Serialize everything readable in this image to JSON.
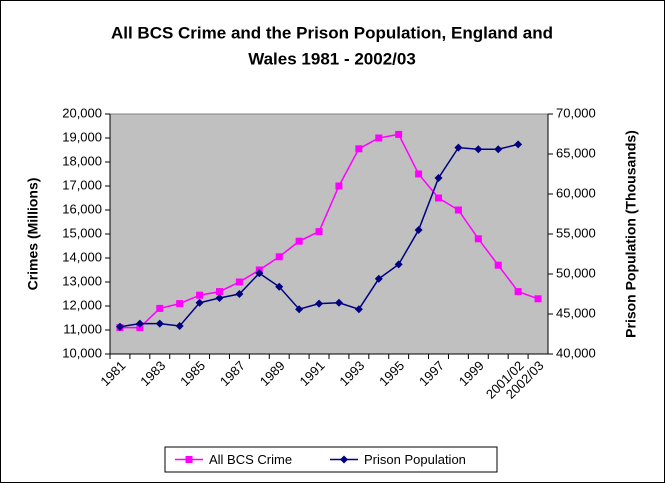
{
  "chart_data": {
    "type": "line",
    "title": [
      "All BCS Crime and the Prison Population, England and",
      "Wales 1981 - 2002/03"
    ],
    "y_label": "Crimes (Millions)",
    "y2_label": "Prison Population (Thousands)",
    "categories": [
      "1981",
      null,
      "1983",
      null,
      "1985",
      null,
      "1987",
      null,
      "1989",
      null,
      "1991",
      null,
      "1993",
      null,
      "1995",
      null,
      "1997",
      null,
      "1999",
      null,
      "2001/02",
      "2002/03"
    ],
    "series": [
      {
        "name": "All BCS Crime",
        "color": "#ff00ff",
        "marker": "square",
        "values": [
          11100,
          11100,
          11900,
          12100,
          12450,
          12600,
          13000,
          13500,
          14050,
          14700,
          15100,
          17000,
          18550,
          19000,
          19150,
          17500,
          16500,
          16000,
          14800,
          13700,
          12600,
          12300
        ]
      },
      {
        "name": "Prison Population",
        "color": "#000080",
        "marker": "diamond",
        "axis": "y2",
        "values": [
          43400,
          43800,
          43800,
          43500,
          46400,
          47000,
          47500,
          50100,
          48400,
          45600,
          46300,
          46400,
          45600,
          49400,
          51200,
          55500,
          62000,
          65800,
          65600,
          65600,
          66200,
          null
        ]
      }
    ],
    "ylim": [
      10000,
      20000
    ],
    "yticks": [
      {
        "value": 10000,
        "label": "10,000"
      },
      {
        "value": 11000,
        "label": "11,000"
      },
      {
        "value": 12000,
        "label": "12,000"
      },
      {
        "value": 13000,
        "label": "13,000"
      },
      {
        "value": 14000,
        "label": "14,000"
      },
      {
        "value": 15000,
        "label": "15,000"
      },
      {
        "value": 16000,
        "label": "16,000"
      },
      {
        "value": 17000,
        "label": "17,000"
      },
      {
        "value": 18000,
        "label": "18,000"
      },
      {
        "value": 19000,
        "label": "19,000"
      },
      {
        "value": 20000,
        "label": "20,000"
      }
    ],
    "y2lim": [
      40000,
      70000
    ],
    "y2ticks": [
      {
        "value": 40000,
        "label": "40,000"
      },
      {
        "value": 45000,
        "label": "45,000"
      },
      {
        "value": 50000,
        "label": "50,000"
      },
      {
        "value": 55000,
        "label": "55,000"
      },
      {
        "value": 60000,
        "label": "60,000"
      },
      {
        "value": 65000,
        "label": "65,000"
      },
      {
        "value": 70000,
        "label": "70,000"
      }
    ],
    "grid": false,
    "legend": "bottom",
    "plot_background": "#c0c0c0"
  }
}
